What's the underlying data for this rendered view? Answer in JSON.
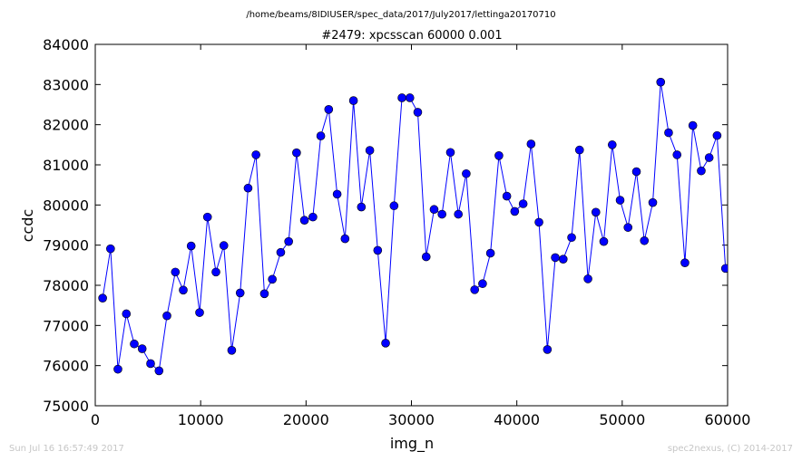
{
  "figure": {
    "suptitle": "/home/beams/8IDIUSER/spec_data/2017/July2017/lettinga20170710",
    "footer_left": "Sun Jul 16 16:57:49 2017",
    "footer_right": "spec2nexus, (C) 2014-2017"
  },
  "chart_data": {
    "type": "line",
    "title": "#2479: xpcsscan 60000 0.001",
    "xlabel": "img_n",
    "ylabel": "ccdc",
    "xlim": [
      0,
      60000
    ],
    "ylim": [
      75000,
      84000
    ],
    "xticks": [
      "0",
      "10000",
      "20000",
      "30000",
      "40000",
      "50000",
      "60000"
    ],
    "yticks": [
      "75000",
      "76000",
      "77000",
      "78000",
      "79000",
      "80000",
      "81000",
      "82000",
      "83000",
      "84000"
    ],
    "grid": false,
    "line_color": "#0000ff",
    "marker": "circle",
    "series": [
      {
        "x": [
          700,
          1450,
          2150,
          2950,
          3700,
          4450,
          5250,
          6050,
          6800,
          7600,
          8350,
          9100,
          9900,
          10650,
          11450,
          12200,
          12950,
          13750,
          14500,
          15250,
          16050,
          16800,
          17600,
          18350,
          19100,
          19850,
          20650,
          21400,
          22150,
          22950,
          23700,
          24500,
          25250,
          26050,
          26800,
          27550,
          28350,
          29100,
          29850,
          30600,
          31400,
          32150,
          32900,
          33700,
          34450,
          35200,
          36000,
          36750,
          37500,
          38300,
          39050,
          39800,
          40600,
          41350,
          42100,
          42900,
          43650,
          44400,
          45200,
          45950,
          46750,
          47500,
          48250,
          49050,
          49800,
          50550,
          51350,
          52100,
          52900,
          53650,
          54400,
          55200,
          55950,
          56700,
          57500,
          58250,
          59000,
          59800
        ],
        "y": [
          77680,
          78910,
          75910,
          77290,
          76540,
          76420,
          76050,
          75870,
          77240,
          78330,
          77880,
          78980,
          77320,
          79700,
          78330,
          78990,
          76380,
          77810,
          80420,
          81250,
          77790,
          78150,
          78820,
          79090,
          81300,
          79620,
          79700,
          81720,
          82380,
          80270,
          79160,
          82600,
          79950,
          81360,
          78870,
          76560,
          79980,
          82670,
          82670,
          82310,
          78710,
          79890,
          79770,
          81310,
          79770,
          80780,
          77890,
          78040,
          78800,
          81230,
          80220,
          79840,
          80030,
          81520,
          79570,
          76400,
          78690,
          78650,
          79190,
          81370,
          78160,
          79820,
          79090,
          81500,
          80120,
          79440,
          80830,
          79110,
          80060,
          83060,
          81800,
          81250,
          78560,
          81980,
          80850,
          81180,
          81730,
          78420
        ]
      }
    ]
  }
}
